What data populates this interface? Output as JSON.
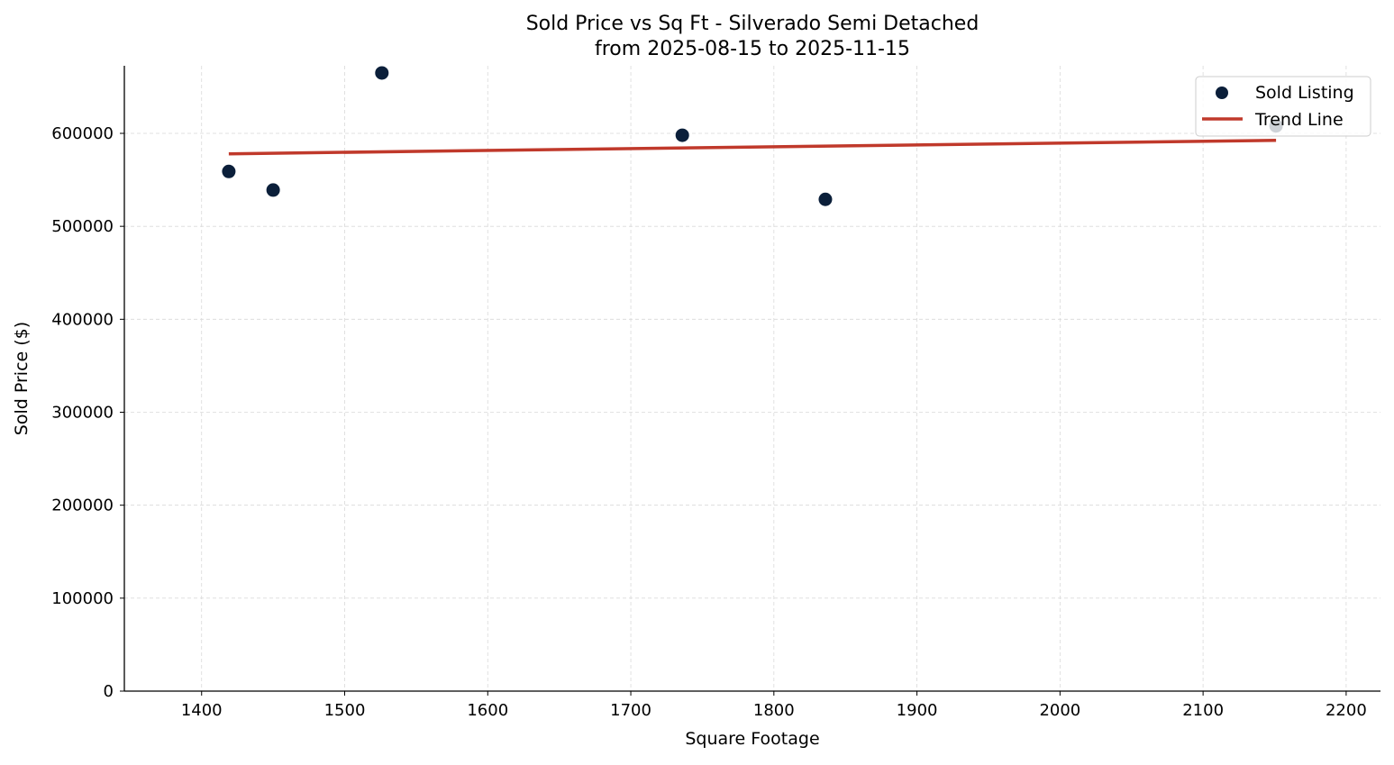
{
  "chart_data": {
    "type": "scatter",
    "title": "Sold Price vs Sq Ft - Silverado Semi Detached",
    "subtitle": "from 2025-08-15 to 2025-11-15",
    "xlabel": "Square Footage",
    "ylabel": "Sold Price ($)",
    "xlim": [
      1346,
      2224
    ],
    "ylim": [
      0,
      672700
    ],
    "xticks": [
      1400,
      1500,
      1600,
      1700,
      1800,
      1900,
      2000,
      2100,
      2200
    ],
    "yticks": [
      0,
      100000,
      200000,
      300000,
      400000,
      500000,
      600000
    ],
    "grid": true,
    "legend_placement": "top-right",
    "series": [
      {
        "name": "Sold Listing",
        "kind": "scatter",
        "color": "#0b1f3a",
        "points": [
          {
            "x": 1419,
            "y": 559000
          },
          {
            "x": 1450,
            "y": 539000
          },
          {
            "x": 1526,
            "y": 665000
          },
          {
            "x": 1736,
            "y": 598000
          },
          {
            "x": 1836,
            "y": 529000
          },
          {
            "x": 2151,
            "y": 608000
          }
        ]
      },
      {
        "name": "Trend Line",
        "kind": "line",
        "color": "#c0392b",
        "points": [
          {
            "x": 1419,
            "y": 578000
          },
          {
            "x": 2151,
            "y": 592500
          }
        ]
      }
    ]
  }
}
